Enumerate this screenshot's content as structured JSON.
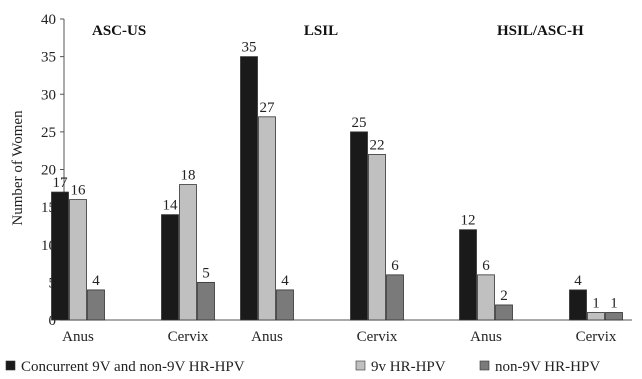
{
  "chart_data": {
    "type": "bar",
    "ylabel": "Number of Women",
    "ylim": [
      0,
      40
    ],
    "yticks": [
      0,
      5,
      10,
      15,
      20,
      25,
      30,
      35,
      40
    ],
    "grid": false,
    "legend_position": "bottom",
    "groups": [
      {
        "title": "ASC-US",
        "categories": [
          {
            "label": "Anus",
            "values": [
              17,
              16,
              4
            ]
          },
          {
            "label": "Cervix",
            "values": [
              14,
              18,
              5
            ]
          }
        ]
      },
      {
        "title": "LSIL",
        "categories": [
          {
            "label": "Anus",
            "values": [
              35,
              27,
              4
            ]
          },
          {
            "label": "Cervix",
            "values": [
              25,
              22,
              6
            ]
          }
        ]
      },
      {
        "title": "HSIL/ASC-H",
        "categories": [
          {
            "label": "Anus",
            "values": [
              12,
              6,
              2
            ]
          },
          {
            "label": "Cervix",
            "values": [
              4,
              1,
              1
            ]
          }
        ]
      }
    ],
    "series": [
      {
        "name": "Concurrent 9V and non-9V HR-HPV",
        "color": "#1a1a1a"
      },
      {
        "name": "9v HR-HPV",
        "color": "#c0c0c0"
      },
      {
        "name": "non-9V HR-HPV",
        "color": "#7a7a7a"
      }
    ]
  }
}
